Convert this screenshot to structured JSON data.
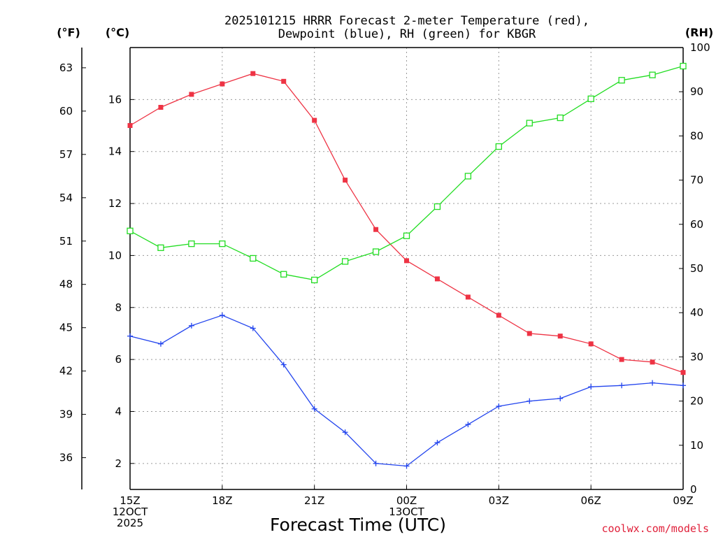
{
  "chart_data": {
    "type": "line",
    "title": [
      "2025101215 HRRR Forecast 2-meter Temperature (red),",
      "Dewpoint (blue), RH (green) for KBGR"
    ],
    "xlabel": "Forecast Time (UTC)",
    "credit": "coolwx.com/models",
    "units": {
      "fahrenheit": "(°F)",
      "celsius": "(°C)",
      "rh": "(RH)"
    },
    "x_hours": [
      0,
      1,
      2,
      3,
      4,
      5,
      6,
      7,
      8,
      9,
      10,
      11,
      12,
      13,
      14,
      15,
      16,
      17,
      18
    ],
    "x_ticks": [
      {
        "hour": 0,
        "lines": [
          "15Z",
          "12OCT",
          "2025"
        ]
      },
      {
        "hour": 3,
        "lines": [
          "18Z"
        ]
      },
      {
        "hour": 6,
        "lines": [
          "21Z"
        ]
      },
      {
        "hour": 9,
        "lines": [
          "00Z",
          "13OCT"
        ]
      },
      {
        "hour": 12,
        "lines": [
          "03Z"
        ]
      },
      {
        "hour": 15,
        "lines": [
          "06Z"
        ]
      },
      {
        "hour": 18,
        "lines": [
          "09Z"
        ]
      }
    ],
    "y_celsius": {
      "range": [
        1.0,
        18.0
      ],
      "ticks": [
        2,
        4,
        6,
        8,
        10,
        12,
        14,
        16
      ]
    },
    "y_fahrenheit": {
      "ticks": [
        36,
        39,
        42,
        45,
        48,
        51,
        54,
        57,
        60,
        63
      ]
    },
    "y_rh": {
      "range": [
        0,
        100
      ],
      "ticks": [
        0,
        10,
        20,
        30,
        40,
        50,
        60,
        70,
        80,
        90,
        100
      ]
    },
    "series": [
      {
        "name": "Temperature",
        "axis": "celsius",
        "color": "#ee3344",
        "marker": "filled-square",
        "values": [
          15.0,
          15.7,
          16.2,
          16.6,
          17.0,
          16.7,
          15.2,
          12.9,
          11.0,
          9.8,
          9.1,
          8.4,
          7.7,
          7.0,
          6.9,
          6.6,
          6.0,
          5.9,
          5.5
        ]
      },
      {
        "name": "Dewpoint",
        "axis": "celsius",
        "color": "#2244ee",
        "marker": "plus",
        "values": [
          6.9,
          6.6,
          7.3,
          7.7,
          7.2,
          5.8,
          4.1,
          3.2,
          2.0,
          1.9,
          2.8,
          3.5,
          4.2,
          4.4,
          4.5,
          4.95,
          5.0,
          5.1,
          5.0
        ]
      },
      {
        "name": "RH",
        "axis": "rh",
        "color": "#22dd22",
        "marker": "open-square",
        "values": [
          58.5,
          54.7,
          55.6,
          55.6,
          52.3,
          48.7,
          47.4,
          51.6,
          53.8,
          57.4,
          64.0,
          70.9,
          77.6,
          82.9,
          84.1,
          88.4,
          92.6,
          93.8,
          95.8
        ]
      }
    ]
  }
}
